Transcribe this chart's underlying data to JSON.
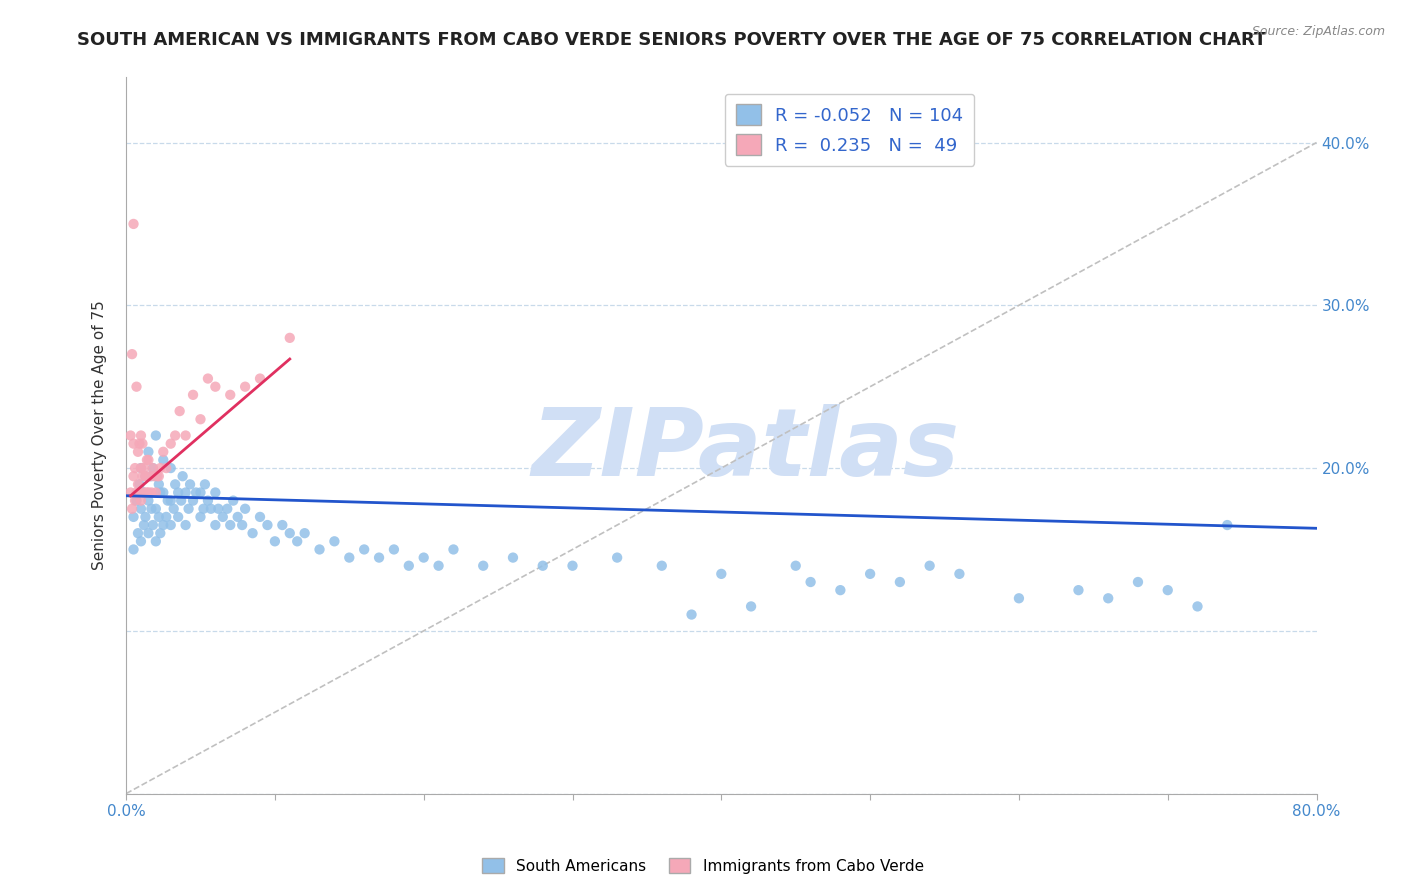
{
  "title": "SOUTH AMERICAN VS IMMIGRANTS FROM CABO VERDE SENIORS POVERTY OVER THE AGE OF 75 CORRELATION CHART",
  "source": "Source: ZipAtlas.com",
  "ylabel": "Seniors Poverty Over the Age of 75",
  "xlim": [
    0.0,
    0.8
  ],
  "ylim": [
    0.0,
    0.44
  ],
  "legend_r_blue": "-0.052",
  "legend_n_blue": "104",
  "legend_r_pink": "0.235",
  "legend_n_pink": "49",
  "blue_color": "#92c0e8",
  "pink_color": "#f5a8b8",
  "blue_line_color": "#2255cc",
  "pink_line_color": "#e03060",
  "ref_line_color": "#c0c0c0",
  "watermark": "ZIPatlas",
  "watermark_color": "#d0dff5",
  "background_color": "#ffffff",
  "title_fontsize": 13,
  "axis_label_fontsize": 11,
  "tick_fontsize": 11,
  "sa_x": [
    0.005,
    0.005,
    0.007,
    0.008,
    0.009,
    0.01,
    0.01,
    0.01,
    0.012,
    0.012,
    0.013,
    0.013,
    0.015,
    0.015,
    0.015,
    0.017,
    0.017,
    0.018,
    0.018,
    0.02,
    0.02,
    0.02,
    0.02,
    0.022,
    0.022,
    0.023,
    0.023,
    0.025,
    0.025,
    0.025,
    0.027,
    0.028,
    0.03,
    0.03,
    0.03,
    0.032,
    0.033,
    0.035,
    0.035,
    0.037,
    0.038,
    0.04,
    0.04,
    0.042,
    0.043,
    0.045,
    0.047,
    0.05,
    0.05,
    0.052,
    0.053,
    0.055,
    0.057,
    0.06,
    0.06,
    0.062,
    0.065,
    0.068,
    0.07,
    0.072,
    0.075,
    0.078,
    0.08,
    0.085,
    0.09,
    0.095,
    0.1,
    0.105,
    0.11,
    0.115,
    0.12,
    0.13,
    0.14,
    0.15,
    0.16,
    0.17,
    0.18,
    0.19,
    0.2,
    0.21,
    0.22,
    0.24,
    0.26,
    0.28,
    0.3,
    0.33,
    0.36,
    0.4,
    0.45,
    0.5,
    0.52,
    0.54,
    0.56,
    0.6,
    0.64,
    0.66,
    0.68,
    0.7,
    0.72,
    0.74,
    0.38,
    0.42,
    0.46,
    0.48
  ],
  "sa_y": [
    0.15,
    0.17,
    0.18,
    0.16,
    0.19,
    0.155,
    0.175,
    0.2,
    0.165,
    0.185,
    0.17,
    0.195,
    0.16,
    0.18,
    0.21,
    0.175,
    0.195,
    0.165,
    0.2,
    0.155,
    0.175,
    0.195,
    0.22,
    0.17,
    0.19,
    0.16,
    0.185,
    0.165,
    0.185,
    0.205,
    0.17,
    0.18,
    0.165,
    0.18,
    0.2,
    0.175,
    0.19,
    0.17,
    0.185,
    0.18,
    0.195,
    0.165,
    0.185,
    0.175,
    0.19,
    0.18,
    0.185,
    0.17,
    0.185,
    0.175,
    0.19,
    0.18,
    0.175,
    0.165,
    0.185,
    0.175,
    0.17,
    0.175,
    0.165,
    0.18,
    0.17,
    0.165,
    0.175,
    0.16,
    0.17,
    0.165,
    0.155,
    0.165,
    0.16,
    0.155,
    0.16,
    0.15,
    0.155,
    0.145,
    0.15,
    0.145,
    0.15,
    0.14,
    0.145,
    0.14,
    0.15,
    0.14,
    0.145,
    0.14,
    0.14,
    0.145,
    0.14,
    0.135,
    0.14,
    0.135,
    0.13,
    0.14,
    0.135,
    0.12,
    0.125,
    0.12,
    0.13,
    0.125,
    0.115,
    0.165,
    0.11,
    0.115,
    0.13,
    0.125
  ],
  "cv_x": [
    0.003,
    0.003,
    0.004,
    0.004,
    0.005,
    0.005,
    0.005,
    0.006,
    0.006,
    0.007,
    0.007,
    0.008,
    0.008,
    0.009,
    0.009,
    0.01,
    0.01,
    0.01,
    0.011,
    0.011,
    0.012,
    0.012,
    0.013,
    0.014,
    0.014,
    0.015,
    0.015,
    0.016,
    0.017,
    0.018,
    0.019,
    0.02,
    0.021,
    0.022,
    0.023,
    0.025,
    0.027,
    0.03,
    0.033,
    0.036,
    0.04,
    0.045,
    0.05,
    0.055,
    0.06,
    0.07,
    0.08,
    0.09,
    0.11
  ],
  "cv_y": [
    0.185,
    0.22,
    0.175,
    0.27,
    0.195,
    0.215,
    0.35,
    0.18,
    0.2,
    0.185,
    0.25,
    0.19,
    0.21,
    0.185,
    0.215,
    0.18,
    0.2,
    0.22,
    0.195,
    0.215,
    0.185,
    0.2,
    0.195,
    0.185,
    0.205,
    0.185,
    0.205,
    0.195,
    0.185,
    0.2,
    0.195,
    0.185,
    0.195,
    0.195,
    0.2,
    0.21,
    0.2,
    0.215,
    0.22,
    0.235,
    0.22,
    0.245,
    0.23,
    0.255,
    0.25,
    0.245,
    0.25,
    0.255,
    0.28
  ],
  "blue_trend_x": [
    0.0,
    0.8
  ],
  "blue_trend_y": [
    0.183,
    0.163
  ],
  "pink_trend_x": [
    0.003,
    0.11
  ],
  "pink_trend_y": [
    0.183,
    0.267
  ],
  "ref_line_x": [
    0.0,
    0.8
  ],
  "ref_line_y": [
    0.0,
    0.4
  ]
}
